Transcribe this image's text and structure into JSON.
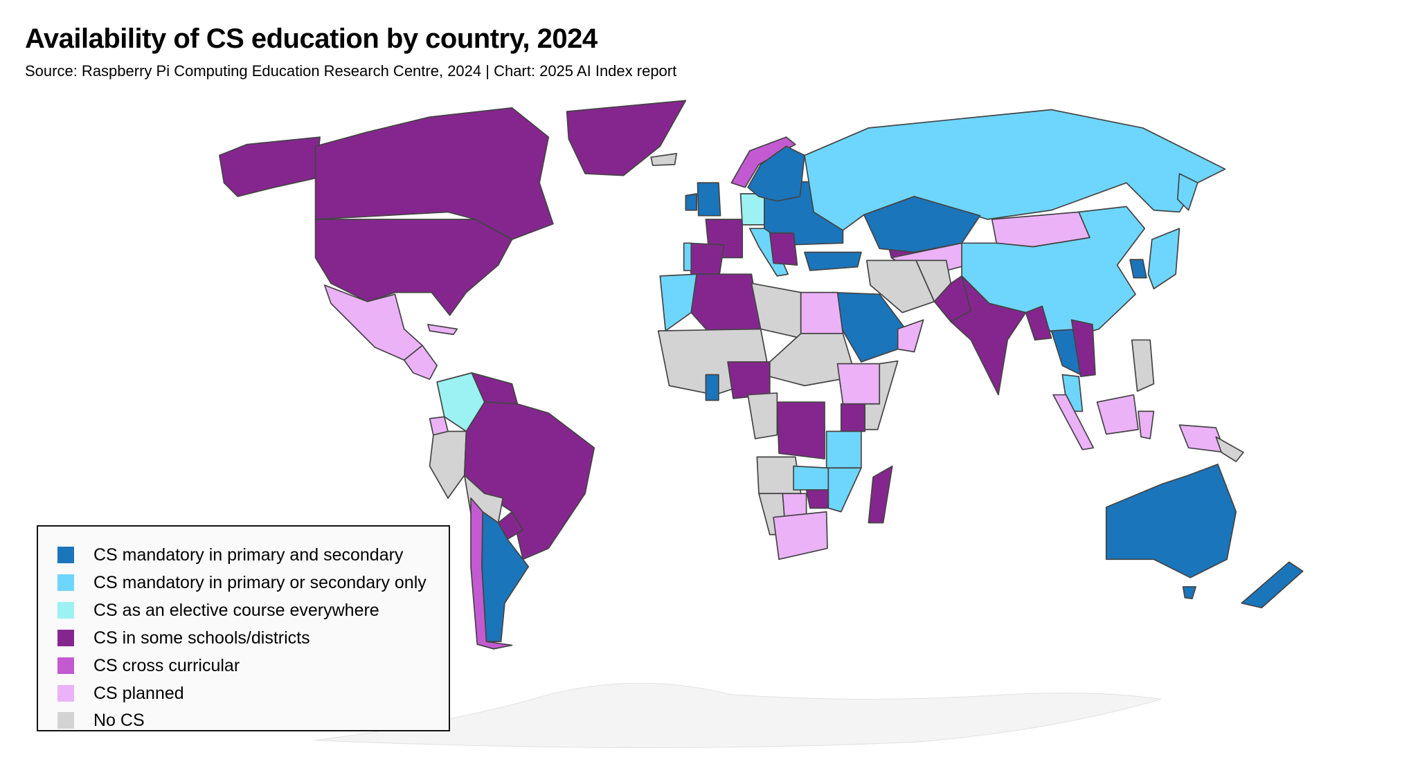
{
  "header": {
    "title": "Availability of CS education by country, 2024",
    "subtitle": "Source: Raspberry Pi Computing Education Research Centre, 2024 | Chart: 2025 AI Index report"
  },
  "legend": {
    "placement": "bottom-left",
    "items": [
      {
        "label": "CS mandatory in primary and secondary",
        "color": "#1B75BB"
      },
      {
        "label": "CS mandatory in primary or secondary only",
        "color": "#6ED6FD"
      },
      {
        "label": "CS as an elective course everywhere",
        "color": "#9CF1F2"
      },
      {
        "label": "CS in some schools/districts",
        "color": "#85268F"
      },
      {
        "label": "CS cross curricular",
        "color": "#C45AD2"
      },
      {
        "label": "CS planned",
        "color": "#EBB2F8"
      },
      {
        "label": "No CS",
        "color": "#D3D3D3"
      }
    ]
  },
  "map": {
    "border_color": "#444444",
    "antarctica_color": "#F4F4F4"
  }
}
